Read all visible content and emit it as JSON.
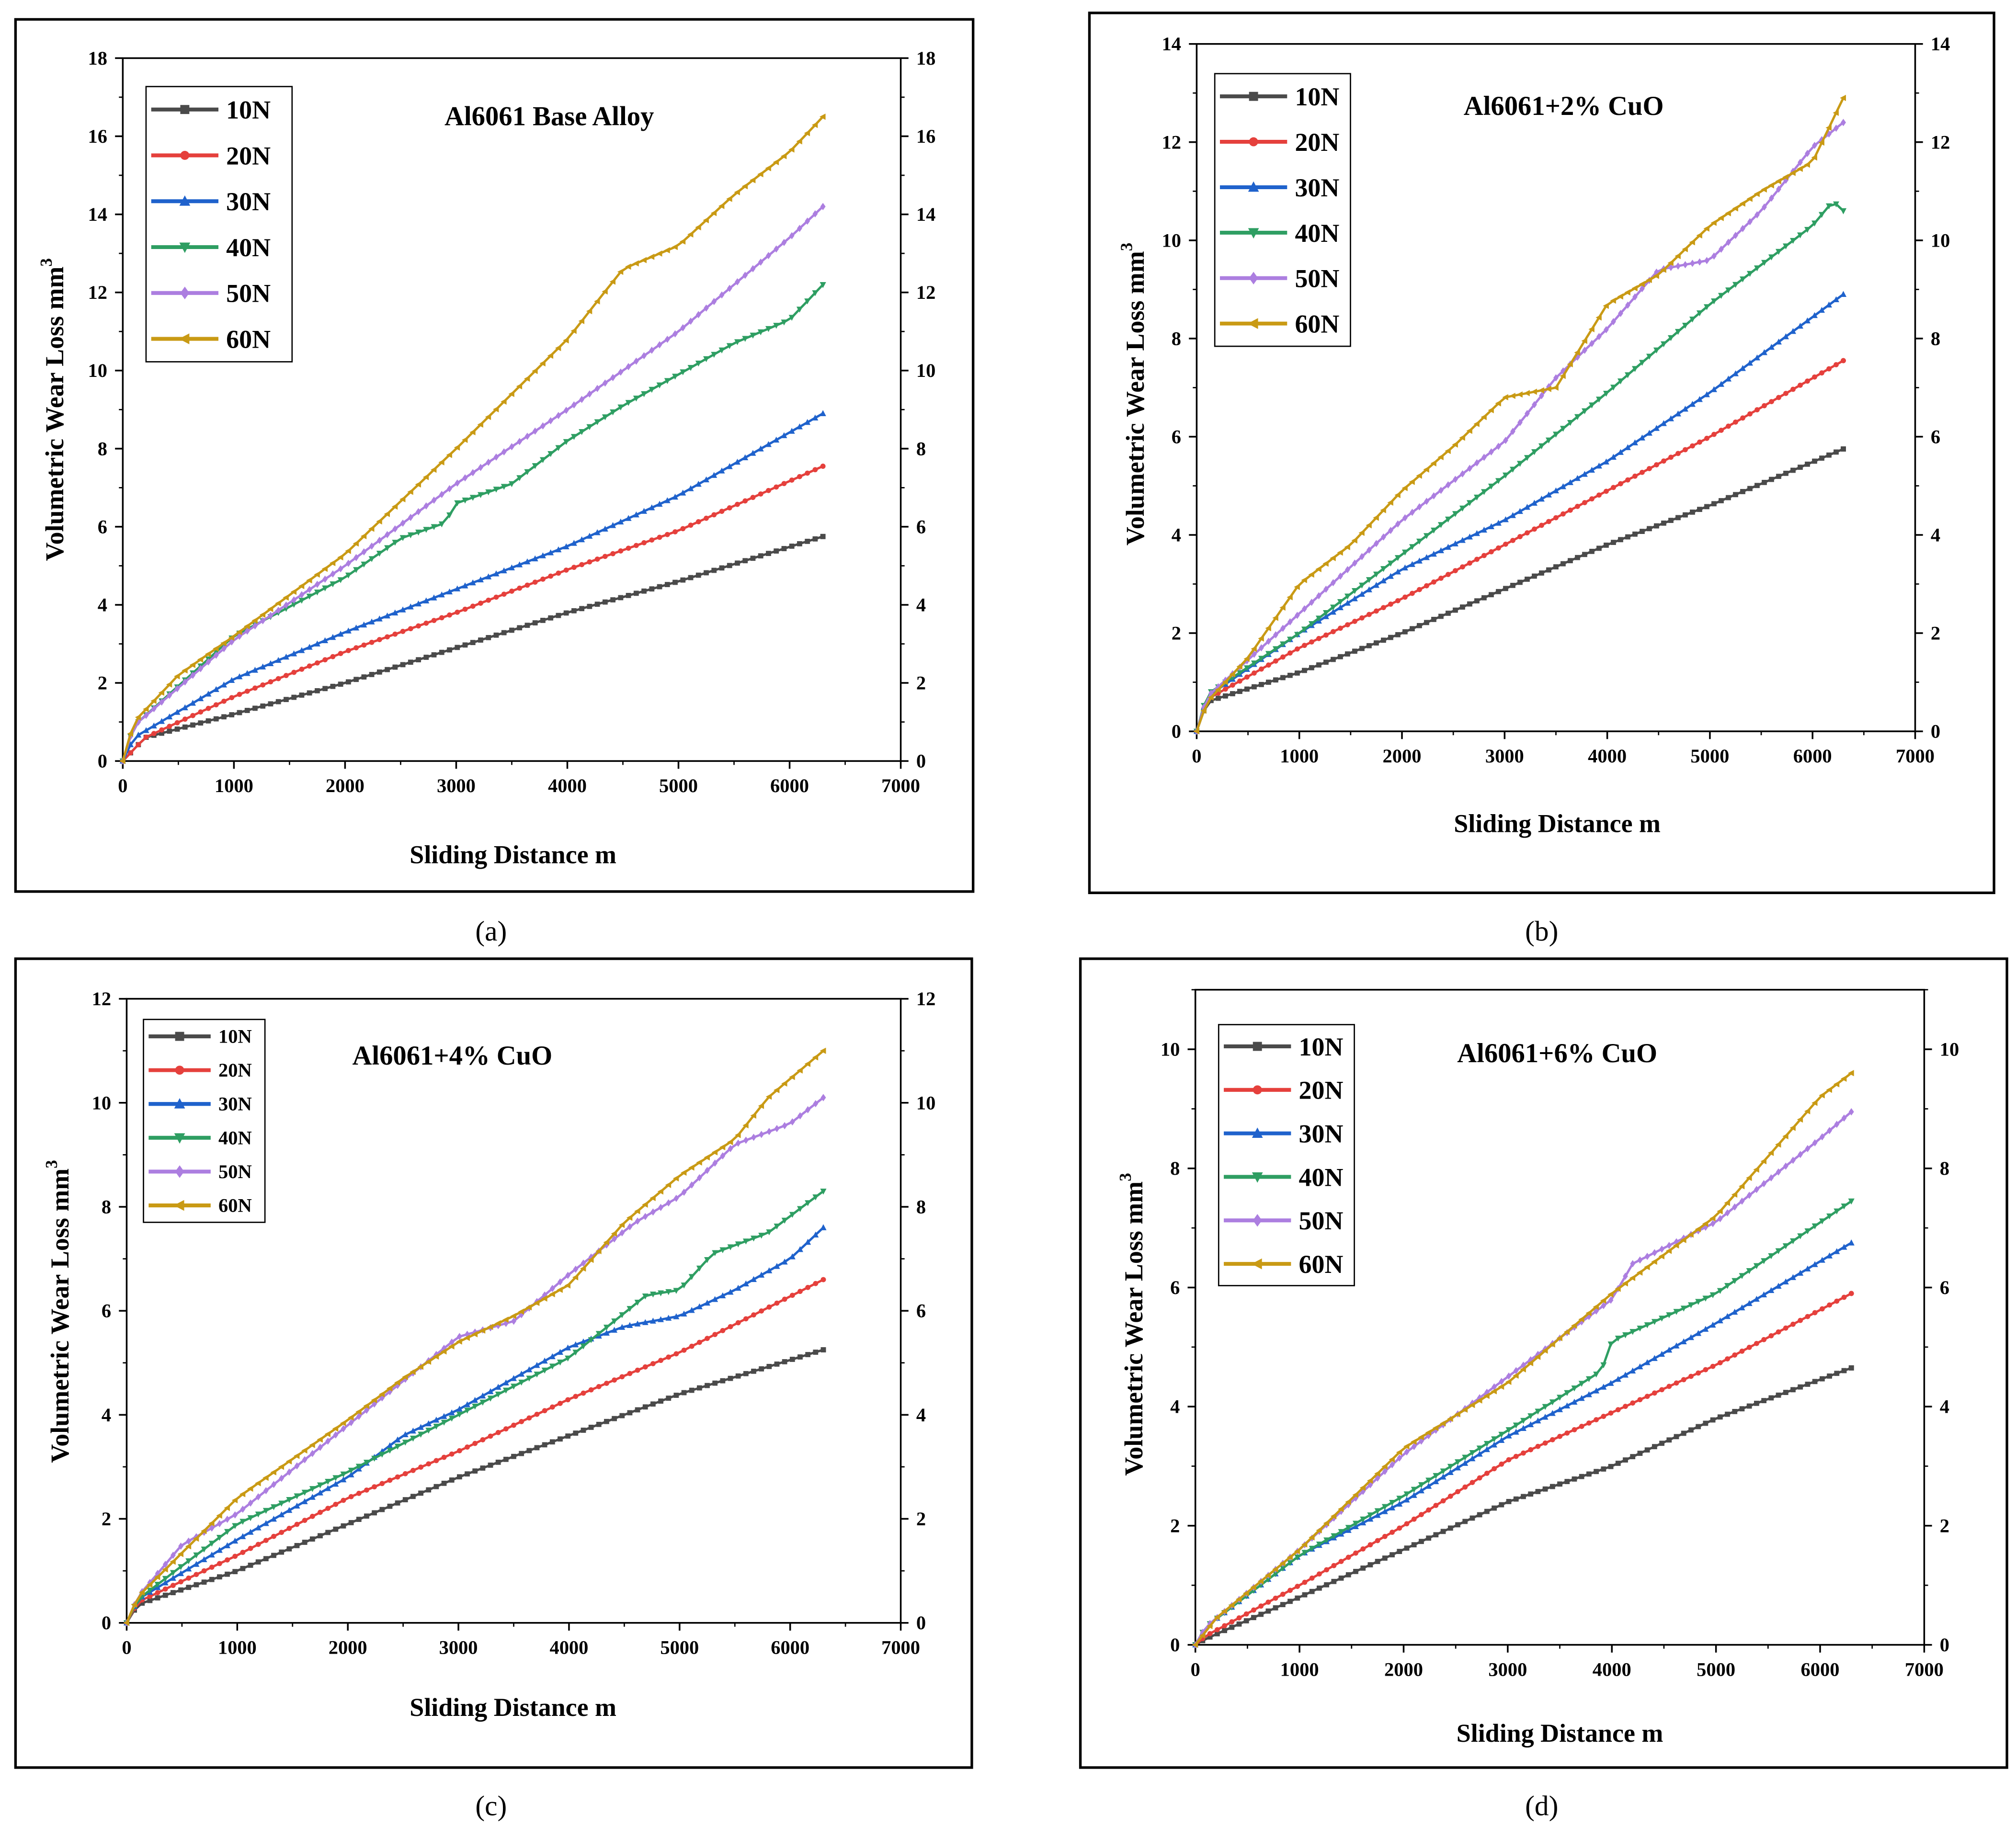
{
  "colors": {
    "10N": "#4a4a4a",
    "20N": "#e5403c",
    "30N": "#1f62cc",
    "40N": "#2e9e62",
    "50N": "#ac7ee0",
    "60N": "#c99a14"
  },
  "markers": {
    "10N": "square",
    "20N": "circle",
    "30N": "triangle-up",
    "40N": "triangle-down",
    "50N": "diamond",
    "60N": "triangle-left"
  },
  "chart_data": [
    {
      "type": "line",
      "caption": "(a)",
      "title": "Al6061 Base Alloy",
      "xlabel": "Sliding Distance m",
      "ylabel": "Volumetric Wear Loss mm",
      "ylabel_sup": "3",
      "xlim": [
        0,
        7000
      ],
      "ylim": [
        0,
        18
      ],
      "xticks": [
        "0",
        "1000",
        "2000",
        "3000",
        "4000",
        "5000",
        "6000",
        "7000"
      ],
      "yticks": [
        "0",
        "2",
        "4",
        "6",
        "8",
        "10",
        "12",
        "14",
        "16",
        "18"
      ],
      "legend": "top-left",
      "series": [
        {
          "name": "10N",
          "x": [
            0,
            200,
            1000,
            2000,
            3000,
            4000,
            5000,
            6300
          ],
          "y": [
            0,
            0.6,
            1.2,
            2.0,
            2.9,
            3.8,
            4.6,
            5.75
          ]
        },
        {
          "name": "20N",
          "x": [
            0,
            200,
            1000,
            2000,
            3000,
            4000,
            5000,
            6300
          ],
          "y": [
            0,
            0.6,
            1.65,
            2.8,
            3.8,
            4.9,
            5.9,
            7.55
          ]
        },
        {
          "name": "30N",
          "x": [
            0,
            100,
            1000,
            2000,
            3000,
            4000,
            5000,
            6300
          ],
          "y": [
            0,
            0.6,
            2.1,
            3.3,
            4.4,
            5.5,
            6.8,
            8.9
          ]
        },
        {
          "name": "40N",
          "x": [
            0,
            100,
            1000,
            2000,
            2500,
            2900,
            3000,
            3500,
            4000,
            4500,
            5000,
            5500,
            6000,
            6300
          ],
          "y": [
            0,
            0.9,
            3.2,
            4.7,
            5.7,
            6.1,
            6.6,
            7.1,
            8.2,
            9.1,
            9.9,
            10.7,
            11.3,
            12.2
          ]
        },
        {
          "name": "50N",
          "x": [
            0,
            100,
            1000,
            2000,
            3000,
            4000,
            5000,
            6000,
            6300
          ],
          "y": [
            0,
            0.9,
            3.1,
            5.0,
            7.1,
            9.0,
            11.0,
            13.4,
            14.2
          ]
        },
        {
          "name": "60N",
          "x": [
            0,
            100,
            500,
            1000,
            2000,
            3000,
            4000,
            4500,
            5000,
            5500,
            6000,
            6300
          ],
          "y": [
            0,
            1.0,
            2.2,
            3.2,
            5.3,
            8.0,
            10.8,
            12.6,
            13.2,
            14.5,
            15.6,
            16.5
          ]
        }
      ]
    },
    {
      "type": "line",
      "caption": "(b)",
      "title": "Al6061+2% CuO",
      "xlabel": "Sliding Distance m",
      "ylabel": "Volumetric Wear Loss mm",
      "ylabel_sup": "3",
      "xlim": [
        0,
        7000
      ],
      "ylim": [
        0,
        14
      ],
      "xticks": [
        "0",
        "1000",
        "2000",
        "3000",
        "4000",
        "5000",
        "6000",
        "7000"
      ],
      "yticks": [
        "0",
        "2",
        "4",
        "6",
        "8",
        "10",
        "12",
        "14"
      ],
      "legend": "top-left",
      "series": [
        {
          "name": "10N",
          "x": [
            0,
            100,
            1000,
            2000,
            3000,
            4000,
            5000,
            6300
          ],
          "y": [
            0,
            0.6,
            1.2,
            2.0,
            2.9,
            3.8,
            4.6,
            5.75
          ]
        },
        {
          "name": "20N",
          "x": [
            0,
            100,
            1000,
            2000,
            3000,
            4000,
            5000,
            6300
          ],
          "y": [
            0,
            0.65,
            1.7,
            2.7,
            3.8,
            4.9,
            6.0,
            7.55
          ]
        },
        {
          "name": "30N",
          "x": [
            0,
            100,
            1000,
            2000,
            3000,
            4000,
            5000,
            6300
          ],
          "y": [
            0,
            0.7,
            2.0,
            3.3,
            4.3,
            5.5,
            6.9,
            8.9
          ]
        },
        {
          "name": "40N",
          "x": [
            0,
            100,
            1000,
            2000,
            3000,
            4000,
            5000,
            6000,
            6200,
            6300
          ],
          "y": [
            0,
            0.75,
            2.0,
            3.6,
            5.2,
            6.9,
            8.7,
            10.3,
            10.8,
            10.6
          ]
        },
        {
          "name": "50N",
          "x": [
            0,
            100,
            1000,
            2000,
            3000,
            3500,
            4000,
            4500,
            5000,
            5500,
            6000,
            6300
          ],
          "y": [
            0,
            0.7,
            2.4,
            4.3,
            5.9,
            7.2,
            8.2,
            9.4,
            9.6,
            10.6,
            11.9,
            12.4
          ]
        },
        {
          "name": "60N",
          "x": [
            0,
            100,
            500,
            1000,
            1500,
            2000,
            2500,
            3000,
            3500,
            4000,
            4500,
            5000,
            5500,
            6000,
            6300
          ],
          "y": [
            0,
            0.6,
            1.5,
            3.0,
            3.8,
            4.9,
            5.8,
            6.8,
            7.0,
            8.7,
            9.3,
            10.3,
            11.0,
            11.6,
            12.9
          ]
        }
      ]
    },
    {
      "type": "line",
      "caption": "(c)",
      "title": "Al6061+4% CuO",
      "xlabel": "Sliding Distance m",
      "ylabel": "Volumetric Wear Loss mm",
      "ylabel_sup": "3",
      "xlim": [
        0,
        7000
      ],
      "ylim": [
        0,
        12
      ],
      "xticks": [
        "0",
        "1000",
        "2000",
        "3000",
        "4000",
        "5000",
        "6000",
        "7000"
      ],
      "yticks": [
        "0",
        "2",
        "4",
        "6",
        "8",
        "10",
        "12"
      ],
      "legend": "top-left",
      "series": [
        {
          "name": "10N",
          "x": [
            0,
            100,
            1000,
            2000,
            3000,
            4000,
            5000,
            6300
          ],
          "y": [
            0,
            0.35,
            1.0,
            1.9,
            2.8,
            3.6,
            4.4,
            5.25
          ]
        },
        {
          "name": "20N",
          "x": [
            0,
            100,
            1000,
            2000,
            3000,
            4000,
            5000,
            6300
          ],
          "y": [
            0,
            0.4,
            1.3,
            2.4,
            3.3,
            4.3,
            5.2,
            6.6
          ]
        },
        {
          "name": "30N",
          "x": [
            0,
            100,
            1000,
            2000,
            2500,
            3000,
            3500,
            4000,
            4500,
            5000,
            5500,
            6000,
            6300
          ],
          "y": [
            0,
            0.45,
            1.6,
            2.8,
            3.6,
            4.1,
            4.7,
            5.3,
            5.7,
            5.9,
            6.4,
            7.0,
            7.6
          ]
        },
        {
          "name": "40N",
          "x": [
            0,
            100,
            1000,
            2000,
            3000,
            4000,
            4700,
            5000,
            5300,
            5800,
            6300
          ],
          "y": [
            0,
            0.45,
            1.9,
            2.9,
            4.0,
            5.1,
            6.3,
            6.4,
            7.1,
            7.5,
            8.3
          ]
        },
        {
          "name": "50N",
          "x": [
            0,
            100,
            500,
            1000,
            2000,
            3000,
            3500,
            4000,
            4600,
            5000,
            5500,
            6000,
            6300
          ],
          "y": [
            0,
            0.5,
            1.5,
            2.1,
            3.8,
            5.5,
            5.8,
            6.7,
            7.7,
            8.2,
            9.2,
            9.6,
            10.1
          ]
        },
        {
          "name": "60N",
          "x": [
            0,
            100,
            1000,
            2000,
            2500,
            3000,
            3500,
            4000,
            4500,
            5000,
            5500,
            5800,
            6300
          ],
          "y": [
            0,
            0.5,
            2.4,
            3.9,
            4.7,
            5.4,
            5.9,
            6.5,
            7.7,
            8.6,
            9.3,
            10.1,
            11.0
          ]
        }
      ]
    },
    {
      "type": "line",
      "caption": "(d)",
      "title": "Al6061+6% CuO",
      "xlabel": "Sliding Distance m",
      "ylabel": "Volumetric Wear Loss mm",
      "ylabel_sup": "3",
      "xlim": [
        0,
        7000
      ],
      "ylim": [
        0,
        11
      ],
      "xticks": [
        "0",
        "1000",
        "2000",
        "3000",
        "4000",
        "5000",
        "6000",
        "7000"
      ],
      "yticks": [
        "0",
        "2",
        "4",
        "6",
        "8",
        "10"
      ],
      "legend": "top-left",
      "series": [
        {
          "name": "10N",
          "x": [
            0,
            100,
            1000,
            2000,
            3000,
            4000,
            5000,
            6300
          ],
          "y": [
            0,
            0.1,
            0.8,
            1.6,
            2.4,
            3.0,
            3.8,
            4.65
          ]
        },
        {
          "name": "20N",
          "x": [
            0,
            100,
            1000,
            2000,
            3000,
            4000,
            5000,
            6300
          ],
          "y": [
            0,
            0.15,
            1.0,
            2.0,
            3.1,
            3.9,
            4.7,
            5.9
          ]
        },
        {
          "name": "30N",
          "x": [
            0,
            100,
            1000,
            2000,
            3000,
            4000,
            5000,
            6300
          ],
          "y": [
            0,
            0.3,
            1.5,
            2.4,
            3.5,
            4.4,
            5.4,
            6.75
          ]
        },
        {
          "name": "40N",
          "x": [
            0,
            100,
            1000,
            2000,
            3000,
            3900,
            4000,
            5000,
            6300
          ],
          "y": [
            0,
            0.3,
            1.5,
            2.5,
            3.6,
            4.6,
            5.1,
            5.9,
            7.45
          ]
        },
        {
          "name": "50N",
          "x": [
            0,
            100,
            1000,
            2000,
            3000,
            4000,
            4200,
            5000,
            6000,
            6300
          ],
          "y": [
            0,
            0.3,
            1.6,
            3.2,
            4.5,
            5.8,
            6.4,
            7.1,
            8.5,
            8.95
          ]
        },
        {
          "name": "60N",
          "x": [
            0,
            200,
            1000,
            2000,
            3000,
            4000,
            5000,
            6000,
            6300
          ],
          "y": [
            0,
            0.45,
            1.6,
            3.3,
            4.4,
            5.9,
            7.2,
            9.2,
            9.6
          ]
        }
      ]
    }
  ]
}
